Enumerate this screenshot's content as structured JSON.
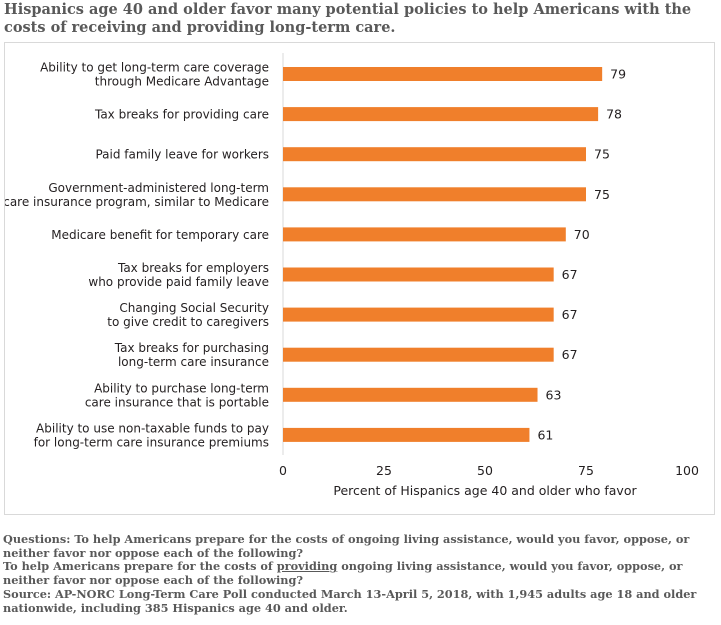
{
  "title": "Hispanics age 40 and older favor many potential policies to help Americans with the costs of receiving and providing long-term care.",
  "chart_data": {
    "type": "bar",
    "orientation": "horizontal",
    "categories": [
      [
        "Ability to get long-term care coverage",
        "through Medicare Advantage"
      ],
      [
        "Tax breaks for providing care"
      ],
      [
        "Paid family leave for workers"
      ],
      [
        "Government-administered long-term",
        "care insurance program, similar to Medicare"
      ],
      [
        "Medicare benefit for temporary care"
      ],
      [
        "Tax breaks for employers",
        "who provide paid family leave"
      ],
      [
        "Changing Social Security",
        "to give credit to caregivers"
      ],
      [
        "Tax breaks for purchasing",
        "long-term care insurance"
      ],
      [
        "Ability to purchase long-term",
        "care insurance that is portable"
      ],
      [
        "Ability to use non-taxable funds to pay",
        "for long-term care insurance premiums"
      ]
    ],
    "values": [
      79,
      78,
      75,
      75,
      70,
      67,
      67,
      67,
      63,
      61
    ],
    "xlabel": "Percent of Hispanics age 40 and older who favor",
    "ylabel": "",
    "xlim": [
      0,
      100
    ],
    "xticks": [
      0,
      25,
      50,
      75,
      100
    ],
    "grid": false,
    "bar_color": "#f07f2b",
    "data_labels": true
  },
  "notes": {
    "q1": "Questions: To help Americans prepare for the costs of ongoing living assistance, would you favor, oppose, or neither favor nor oppose each of the following?",
    "q2_before": "To help Americans prepare for the costs of ",
    "q2_emph": "providing",
    "q2_after": " ongoing living assistance, would you favor, oppose, or neither favor nor oppose each of the following?",
    "source": "Source: AP-NORC Long-Term Care Poll conducted March 13-April 5, 2018, with 1,945 adults age 18 and older nationwide, including 385 Hispanics age 40 and older."
  }
}
